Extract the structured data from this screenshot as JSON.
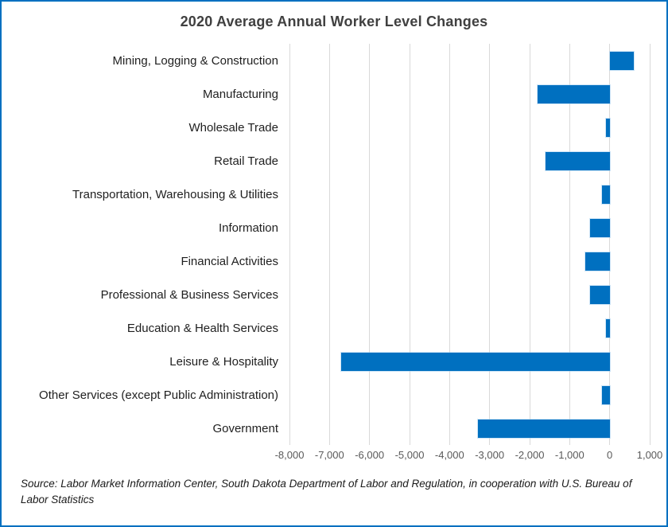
{
  "chart_data": {
    "type": "bar",
    "orientation": "horizontal",
    "title": "2020 Average Annual Worker Level Changes",
    "categories": [
      "Mining, Logging & Construction",
      "Manufacturing",
      "Wholesale Trade",
      "Retail Trade",
      "Transportation, Warehousing & Utilities",
      "Information",
      "Financial Activities",
      "Professional & Business Services",
      "Education & Health Services",
      "Leisure & Hospitality",
      "Other Services (except Public Administration)",
      "Government"
    ],
    "values": [
      600,
      -1800,
      -100,
      -1600,
      -200,
      -500,
      -600,
      -500,
      -100,
      -6700,
      -200,
      -3300
    ],
    "xlim": [
      -8000,
      1000
    ],
    "tick_values": [
      -8000,
      -7000,
      -6000,
      -5000,
      -4000,
      -3000,
      -2000,
      -1000,
      0,
      1000
    ],
    "tick_labels": [
      "-8,000",
      "-7,000",
      "-6,000",
      "-5,000",
      "-4,000",
      "-3,000",
      "-2,000",
      "-1,000",
      "0",
      "1,000"
    ],
    "grid": true,
    "legend": false,
    "xlabel": "",
    "ylabel": "",
    "bar_color": "#0070C0",
    "gridline_color": "#D9D9D9"
  },
  "colors": {
    "frame_border": "#0070C0",
    "title_text": "#404040",
    "tick_text": "#595959",
    "category_text": "#1f1f1f"
  },
  "source": {
    "text": "Source: Labor Market Information Center, South Dakota Department of Labor and Regulation, in cooperation with U.S. Bureau of Labor Statistics"
  }
}
